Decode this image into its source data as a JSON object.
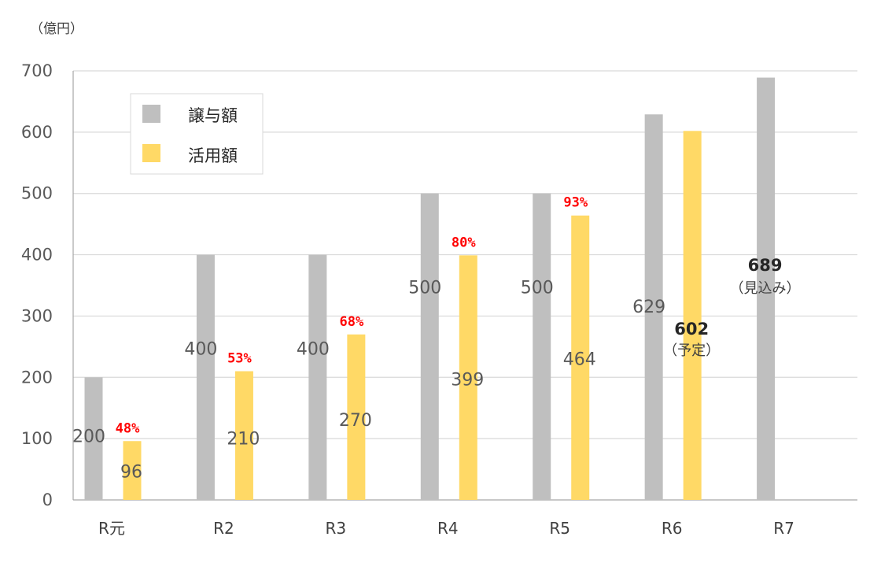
{
  "chart_data": {
    "type": "bar",
    "unit_label": "（億円）",
    "categories": [
      "R元",
      "R2",
      "R3",
      "R4",
      "R5",
      "R6",
      "R7"
    ],
    "ylim": [
      0,
      700
    ],
    "yticks": [
      0,
      100,
      200,
      300,
      400,
      500,
      600,
      700
    ],
    "grid": true,
    "legend_position": "top-left",
    "series": [
      {
        "name": "譲与額",
        "color": "#bfbfbf",
        "values": [
          200,
          400,
          400,
          500,
          500,
          629,
          689
        ]
      },
      {
        "name": "活用額",
        "color": "#ffd966",
        "values": [
          96,
          210,
          270,
          399,
          464,
          602,
          null
        ]
      }
    ],
    "data_labels": {
      "譲与額": [
        "200",
        "400",
        "400",
        "500",
        "500",
        "629",
        "689"
      ],
      "活用額": [
        "96",
        "210",
        "270",
        "399",
        "464",
        "602",
        ""
      ]
    },
    "annotations": {
      "utilization_rates": [
        "48%",
        "53%",
        "68%",
        "80%",
        "93%",
        "",
        ""
      ],
      "r6_note": "（予定）",
      "r7_note": "（見込み）"
    }
  }
}
